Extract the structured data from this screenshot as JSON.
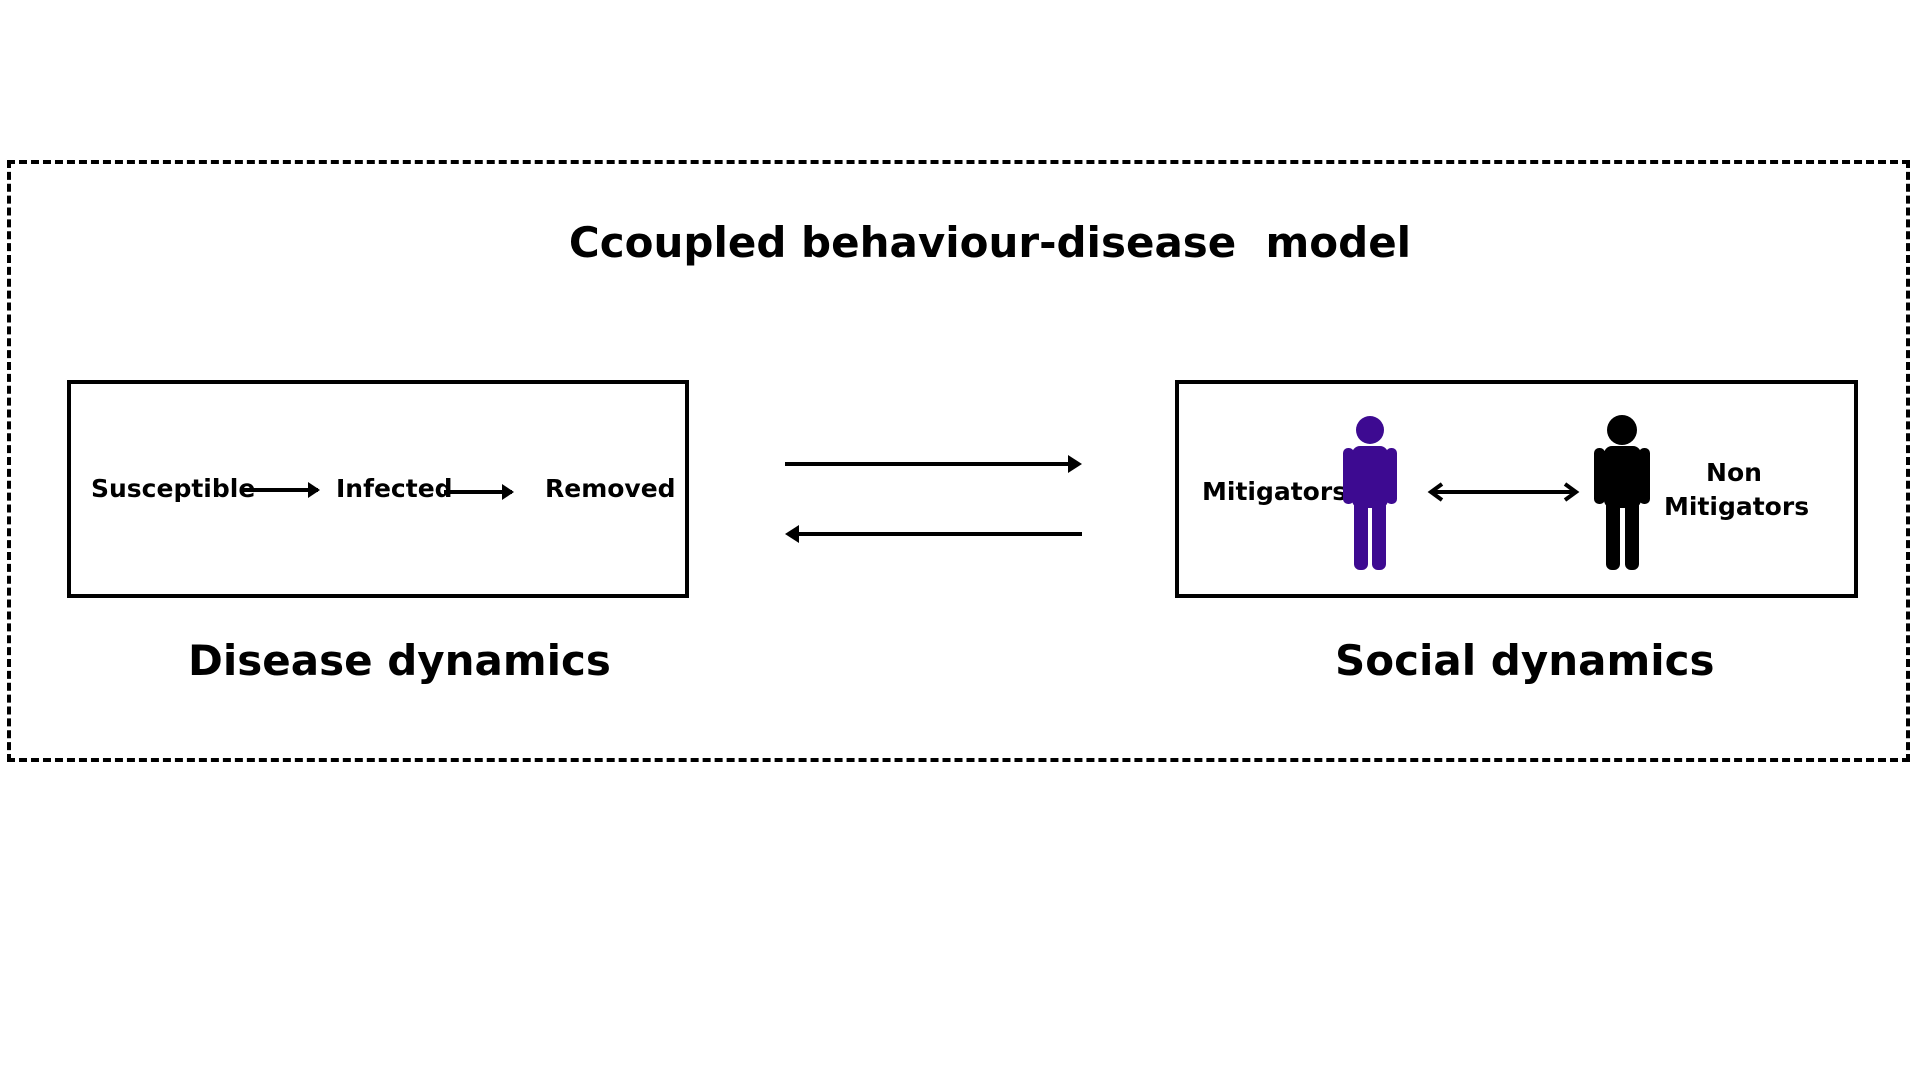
{
  "diagram": {
    "title": "Ccoupled behaviour-disease  model",
    "disease": {
      "caption": "Disease dynamics",
      "nodes": [
        "Susceptible",
        "Infected",
        "Removed"
      ]
    },
    "social": {
      "caption": "Social dynamics",
      "mitigators_label": "Mitigators",
      "non_mitigators_line1": "Non",
      "non_mitigators_line2": "Mitigators"
    },
    "colors": {
      "mitigator_figure": "#3d0a91",
      "non_mitigator_figure": "#000000",
      "stroke": "#000000"
    }
  }
}
